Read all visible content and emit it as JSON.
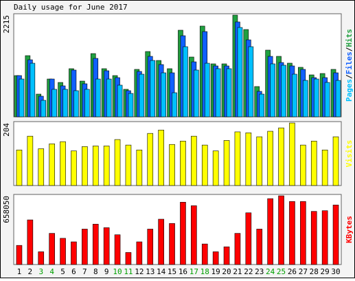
{
  "chart_data": [
    {
      "type": "bar",
      "title": "Daily usage for June 2017",
      "legend_separator": "/",
      "ylim": [
        0,
        2215
      ],
      "yticks": [
        2215
      ],
      "series": [
        {
          "name": "Hits",
          "color": "#20a040",
          "values": [
            898,
            1332,
            494,
            823,
            748,
            1048,
            778,
            1377,
            1048,
            898,
            599,
            1033,
            1422,
            1227,
            1048,
            1886,
            1302,
            1976,
            1153,
            1153,
            2215,
            1901,
            659,
            1452,
            1317,
            1168,
            1078,
            913,
            943,
            1033
          ]
        },
        {
          "name": "Files",
          "color": "#1060ff",
          "values": [
            898,
            1242,
            449,
            823,
            674,
            1018,
            719,
            1272,
            1003,
            853,
            569,
            988,
            1317,
            1138,
            958,
            1766,
            1197,
            1856,
            1108,
            1108,
            2066,
            1676,
            554,
            1317,
            1182,
            1108,
            1033,
            853,
            853,
            958
          ]
        },
        {
          "name": "Pages",
          "color": "#00c0ff",
          "values": [
            823,
            1167,
            359,
            599,
            599,
            569,
            599,
            823,
            823,
            689,
            509,
            928,
            1227,
            958,
            524,
            1527,
            1018,
            1167,
            1048,
            1048,
            1946,
            1527,
            494,
            1153,
            1123,
            928,
            793,
            823,
            749,
            793
          ]
        }
      ]
    },
    {
      "type": "bar",
      "ylim": [
        0,
        204
      ],
      "yticks": [
        204
      ],
      "series": [
        {
          "name": "Visits",
          "color": "#ffff00",
          "values": [
            116,
            161,
            120,
            136,
            143,
            113,
            127,
            129,
            129,
            150,
            132,
            116,
            170,
            181,
            134,
            145,
            161,
            132,
            113,
            147,
            175,
            172,
            159,
            177,
            188,
            204,
            132,
            145,
            116,
            159
          ]
        }
      ]
    },
    {
      "type": "bar",
      "ylim": [
        0,
        658050
      ],
      "yticks": [
        658050
      ],
      "series": [
        {
          "name": "KBytes",
          "color": "#ff0000",
          "values": [
            183168,
            427392,
            122112,
            298496,
            251008,
            217088,
            339200,
            386688,
            352768,
            284928,
            115328,
            217088,
            339200,
            434176,
            393472,
            596992,
            563072,
            196736,
            122112,
            169600,
            298496,
            495232,
            339200,
            630912,
            658050,
            603776,
            603776,
            508800,
            515584,
            569856
          ]
        }
      ],
      "categories": [
        "1",
        "2",
        "3",
        "4",
        "5",
        "6",
        "7",
        "8",
        "9",
        "10",
        "11",
        "12",
        "13",
        "14",
        "15",
        "16",
        "17",
        "18",
        "19",
        "20",
        "21",
        "22",
        "23",
        "24",
        "25",
        "26",
        "27",
        "28",
        "29",
        "30"
      ],
      "category_colors": [
        "#000",
        "#000",
        "#00a000",
        "#00a000",
        "#000",
        "#000",
        "#000",
        "#000",
        "#000",
        "#00a000",
        "#00a000",
        "#000",
        "#000",
        "#000",
        "#000",
        "#000",
        "#00a000",
        "#00a000",
        "#000",
        "#000",
        "#000",
        "#000",
        "#000",
        "#00a000",
        "#00a000",
        "#000",
        "#000",
        "#000",
        "#000",
        "#000"
      ]
    }
  ]
}
